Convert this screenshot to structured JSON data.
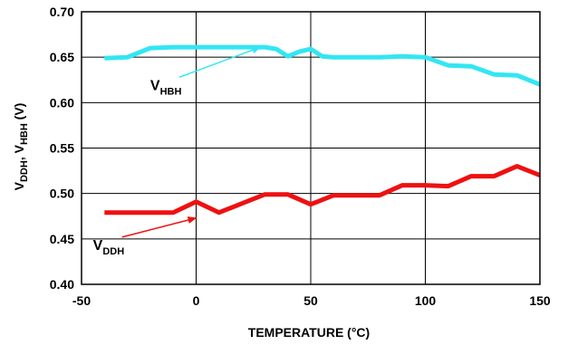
{
  "chart_data": {
    "type": "line",
    "title": "",
    "xlabel": "TEMPERATURE (°C)",
    "ylabel_parts": {
      "main1": "V",
      "sub1": "DDH",
      "sep": ", V",
      "sub2": "HBH",
      "unit": " (V)"
    },
    "xlim": [
      -50,
      150
    ],
    "ylim": [
      0.4,
      0.7
    ],
    "xticks": [
      -50,
      0,
      50,
      100,
      150
    ],
    "xtick_labels": [
      "-50",
      "0",
      "50",
      "100",
      "150"
    ],
    "yticks": [
      0.4,
      0.45,
      0.5,
      0.55,
      0.6,
      0.65,
      0.7
    ],
    "ytick_labels": [
      "0.40",
      "0.45",
      "0.50",
      "0.55",
      "0.60",
      "0.65",
      "0.70"
    ],
    "grid": {
      "x": true,
      "y": true
    },
    "series": [
      {
        "id": "vhbh",
        "color": "#33e6f2",
        "x": [
          -40,
          -30,
          -20,
          -10,
          0,
          10,
          20,
          30,
          35,
          40,
          45,
          50,
          55,
          60,
          70,
          80,
          90,
          100,
          110,
          120,
          130,
          140,
          150
        ],
        "y": [
          0.649,
          0.65,
          0.66,
          0.661,
          0.661,
          0.661,
          0.661,
          0.661,
          0.659,
          0.651,
          0.656,
          0.659,
          0.651,
          0.65,
          0.65,
          0.65,
          0.651,
          0.65,
          0.641,
          0.64,
          0.631,
          0.63,
          0.62
        ]
      },
      {
        "id": "vddh",
        "color": "#ee1111",
        "x": [
          -40,
          -30,
          -20,
          -10,
          0,
          10,
          20,
          30,
          40,
          50,
          60,
          70,
          80,
          90,
          100,
          110,
          120,
          130,
          140,
          150
        ],
        "y": [
          0.479,
          0.479,
          0.479,
          0.479,
          0.491,
          0.479,
          0.489,
          0.499,
          0.499,
          0.488,
          0.498,
          0.498,
          0.498,
          0.509,
          0.509,
          0.508,
          0.519,
          0.519,
          0.53,
          0.52
        ]
      }
    ],
    "annotations": [
      {
        "id": "vhbh",
        "main": "V",
        "sub": "HBH",
        "arrow_color": "#33e6f2",
        "label_xy": [
          -20,
          0.614
        ],
        "point_xy": [
          28,
          0.661
        ]
      },
      {
        "id": "vddh",
        "main": "V",
        "sub": "DDH",
        "arrow_color": "#ee1111",
        "label_xy": [
          -45,
          0.438
        ],
        "point_xy": [
          0,
          0.473
        ]
      }
    ]
  }
}
